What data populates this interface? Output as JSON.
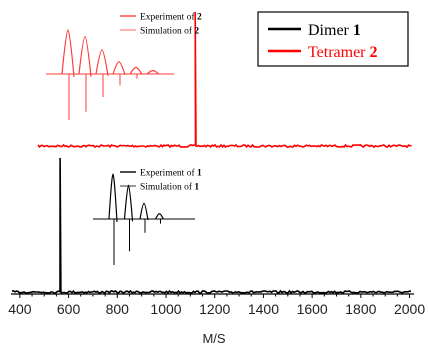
{
  "chart_data": {
    "type": "line",
    "xlabel": "M/S",
    "ylabel": "",
    "title": "",
    "xlim": [
      380,
      2010
    ],
    "xticks": [
      400,
      600,
      800,
      1000,
      1200,
      1400,
      1600,
      1800,
      2000
    ],
    "grid": false,
    "legend_position": "top-right",
    "series": [
      {
        "name_prefix": "Dimer",
        "name_number": "1",
        "color": "#000000",
        "peak_x": 565,
        "baseline_label": "lower trace"
      },
      {
        "name_prefix": "Tetramer",
        "name_number": "2",
        "color": "#ff0000",
        "peak_x": 1120,
        "baseline_label": "upper trace"
      }
    ],
    "insets": [
      {
        "color": "#ff3b3b",
        "legend": [
          {
            "prefix": "Experiment of",
            "number": "2"
          },
          {
            "prefix": "Simulation of",
            "number": "2"
          }
        ],
        "experiment_peaks": [
          1.0,
          0.85,
          0.55,
          0.28,
          0.15,
          0.08
        ],
        "simulation_peaks": [
          1.0,
          0.82,
          0.5,
          0.25,
          0.1
        ]
      },
      {
        "color": "#000000",
        "legend": [
          {
            "prefix": "Experiment of",
            "number": "1"
          },
          {
            "prefix": "Simulation of",
            "number": "1"
          }
        ],
        "experiment_peaks": [
          1.0,
          0.75,
          0.35,
          0.12
        ],
        "simulation_peaks": [
          1.0,
          0.7,
          0.3,
          0.1
        ]
      }
    ]
  }
}
